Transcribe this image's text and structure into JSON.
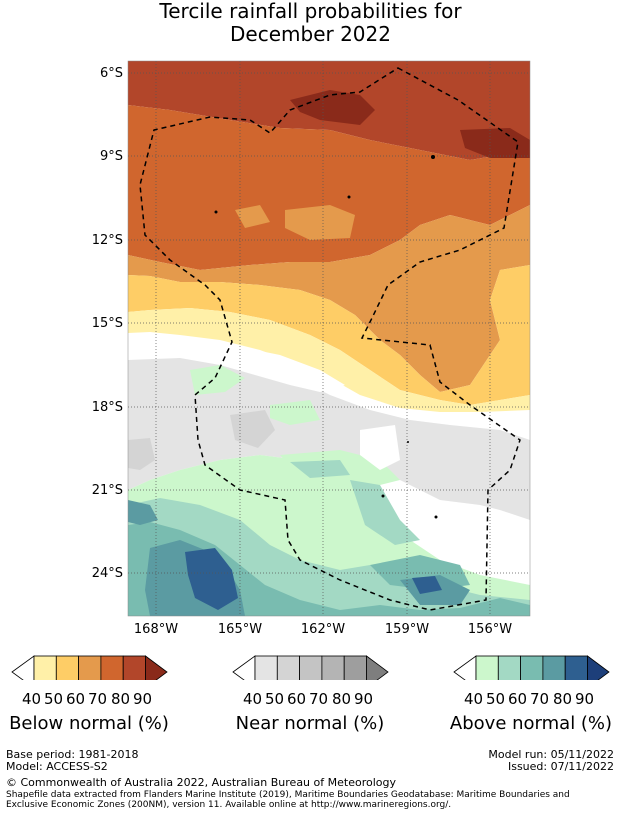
{
  "title": {
    "line1": "Tercile rainfall probabilities for",
    "line2": "December 2022"
  },
  "map": {
    "lat_labels": [
      "6°S",
      "9°S",
      "12°S",
      "15°S",
      "18°S",
      "21°S",
      "24°S"
    ],
    "lon_labels": [
      "168°W",
      "165°W",
      "162°W",
      "159°W",
      "156°W"
    ],
    "boundary": "exclusive-economic-zone dashed outline",
    "colors": {
      "below": [
        "#fff0a8",
        "#fecd66",
        "#e49a4c",
        "#d0662e",
        "#b2462a",
        "#8a2a1a"
      ],
      "near": [
        "#e4e4e4",
        "#d4d4d4",
        "#c4c4c4",
        "#b4b4b4",
        "#9e9e9e",
        "#7e7e7e"
      ],
      "above": [
        "#ccf7cc",
        "#a3d9c4",
        "#79bcb0",
        "#5b9ba2",
        "#2e5f90",
        "#1d3f7a"
      ]
    }
  },
  "colorbars": {
    "ticks": [
      "40",
      "50",
      "60",
      "70",
      "80",
      "90"
    ],
    "below_label": "Below normal (%)",
    "near_label": "Near normal (%)",
    "above_label": "Above normal (%)"
  },
  "footer": {
    "base_period": "Base period: 1981-2018",
    "model": "Model: ACCESS-S2",
    "model_run": "Model run: 05/11/2022",
    "issued": "Issued: 07/11/2022",
    "copyright": "© Commonwealth of Australia 2022, Australian Bureau of Meteorology",
    "shapefile_1": "Shapefile data extracted from Flanders Marine Institute (2019), Maritime Boundaries Geodatabase: Maritime Boundaries and",
    "shapefile_2": "Exclusive Economic Zones (200NM), version 11. Available online at http://www.marineregions.org/."
  }
}
